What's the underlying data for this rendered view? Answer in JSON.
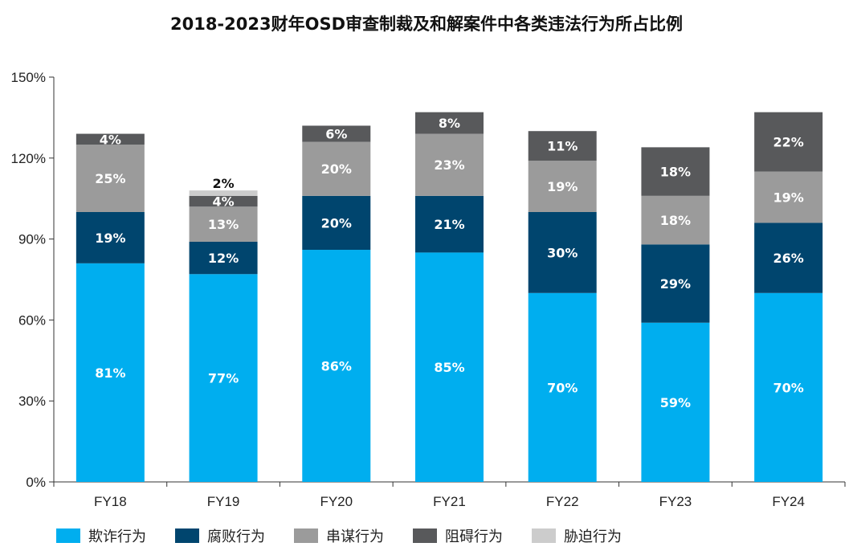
{
  "chart_data": {
    "type": "bar",
    "stacked": true,
    "title": "2018-2023财年OSD审查制裁及和解案件中各类违法行为所占比例",
    "xlabel": "",
    "ylabel": "",
    "ylim": [
      0,
      150
    ],
    "yticks": [
      "0%",
      "30%",
      "60%",
      "90%",
      "120%",
      "150%"
    ],
    "categories": [
      "FY18",
      "FY19",
      "FY20",
      "FY21",
      "FY22",
      "FY23",
      "FY24"
    ],
    "series": [
      {
        "name": "欺诈行为",
        "color": "#00AEEF",
        "label_color": "#ffffff",
        "values": [
          81,
          77,
          86,
          85,
          70,
          59,
          70
        ],
        "labels": [
          "81%",
          "77%",
          "86%",
          "85%",
          "70%",
          "59%",
          "70%"
        ]
      },
      {
        "name": "腐败行为",
        "color": "#00456E",
        "label_color": "#ffffff",
        "values": [
          19,
          12,
          20,
          21,
          30,
          29,
          26
        ],
        "labels": [
          "19%",
          "12%",
          "20%",
          "21%",
          "30%",
          "29%",
          "26%"
        ]
      },
      {
        "name": "串谋行为",
        "color": "#9B9B9B",
        "label_color": "#ffffff",
        "values": [
          25,
          13,
          20,
          23,
          19,
          18,
          19
        ],
        "labels": [
          "25%",
          "13%",
          "20%",
          "23%",
          "19%",
          "18%",
          "19%"
        ]
      },
      {
        "name": "阻碍行为",
        "color": "#58595B",
        "label_color": "#ffffff",
        "values": [
          4,
          4,
          6,
          8,
          11,
          18,
          22
        ],
        "labels": [
          "4%",
          "4%",
          "6%",
          "8%",
          "11%",
          "18%",
          "22%"
        ]
      },
      {
        "name": "胁迫行为",
        "color": "#CCCCCC",
        "label_color": "#111111",
        "values": [
          0,
          2,
          0,
          0,
          0,
          0,
          0
        ],
        "labels": [
          "",
          "2%",
          "",
          "",
          "",
          "",
          ""
        ]
      }
    ],
    "grid": false,
    "legend_position": "bottom"
  }
}
